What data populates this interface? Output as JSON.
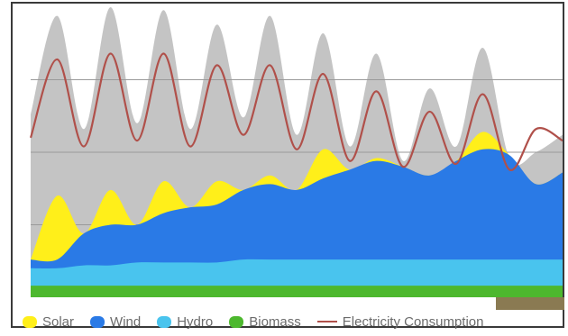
{
  "colors": {
    "consumption_area": "#c4c4c4",
    "solar": "#ffef1a",
    "wind": "#2a7ae6",
    "hydro": "#49c4ee",
    "biomass": "#4db82e",
    "consumption_line": "#b0504a",
    "grid": "#9a9a9a"
  },
  "legend": [
    {
      "id": "solar",
      "label": "Solar",
      "kind": "swatch",
      "color": "#ffef1a"
    },
    {
      "id": "wind",
      "label": "Wind",
      "kind": "swatch",
      "color": "#2a7ae6"
    },
    {
      "id": "hydro",
      "label": "Hydro",
      "kind": "swatch",
      "color": "#49c4ee"
    },
    {
      "id": "biomass",
      "label": "Biomass",
      "kind": "swatch",
      "color": "#4db82e"
    },
    {
      "id": "electricity-consumption",
      "label": "Electricity Consumption",
      "kind": "line",
      "color": "#b0504a"
    }
  ],
  "chart_data": {
    "type": "area",
    "title": "",
    "xlabel": "",
    "ylabel": "",
    "x": [
      0,
      5,
      10,
      15,
      20,
      25,
      30,
      35,
      40,
      45,
      50,
      55,
      60,
      65,
      70,
      75,
      80,
      85,
      90,
      95,
      100
    ],
    "xlim": [
      0,
      100
    ],
    "ylim": [
      0,
      100
    ],
    "grid": true,
    "gridlines_y": [
      25,
      50,
      75
    ],
    "legend_position": "bottom",
    "series": [
      {
        "name": "Electricity Consumption",
        "kind": "area",
        "values": [
          63,
          97,
          58,
          100,
          60,
          99,
          58,
          94,
          62,
          97,
          56,
          91,
          52,
          84,
          47,
          72,
          52,
          86,
          48,
          50,
          56
        ]
      },
      {
        "name": "Electricity Consumption",
        "kind": "line",
        "values": [
          55,
          82,
          52,
          84,
          54,
          84,
          52,
          80,
          56,
          80,
          51,
          77,
          47,
          71,
          45,
          64,
          46,
          70,
          44,
          58,
          54
        ]
      },
      {
        "name": "Solar",
        "kind": "stack",
        "values": [
          4,
          35,
          6,
          37,
          11,
          40,
          13,
          40,
          16,
          42,
          20,
          51,
          24,
          48,
          22,
          40,
          26,
          57,
          32,
          28,
          31
        ]
      },
      {
        "name": "Wind",
        "kind": "stack",
        "values": [
          3,
          3,
          11,
          14,
          13,
          17,
          19,
          20,
          24,
          26,
          24,
          28,
          31,
          34,
          32,
          29,
          34,
          38,
          36,
          26,
          30
        ]
      },
      {
        "name": "Hydro",
        "kind": "stack",
        "values": [
          6,
          6,
          7,
          7,
          8,
          8,
          8,
          8,
          9,
          9,
          9,
          9,
          9,
          9,
          9,
          9,
          9,
          9,
          9,
          9,
          9
        ]
      },
      {
        "name": "Biomass",
        "kind": "stack",
        "values": [
          4,
          4,
          4,
          4,
          4,
          4,
          4,
          4,
          4,
          4,
          4,
          4,
          4,
          4,
          4,
          4,
          4,
          4,
          4,
          4,
          4
        ]
      }
    ]
  }
}
